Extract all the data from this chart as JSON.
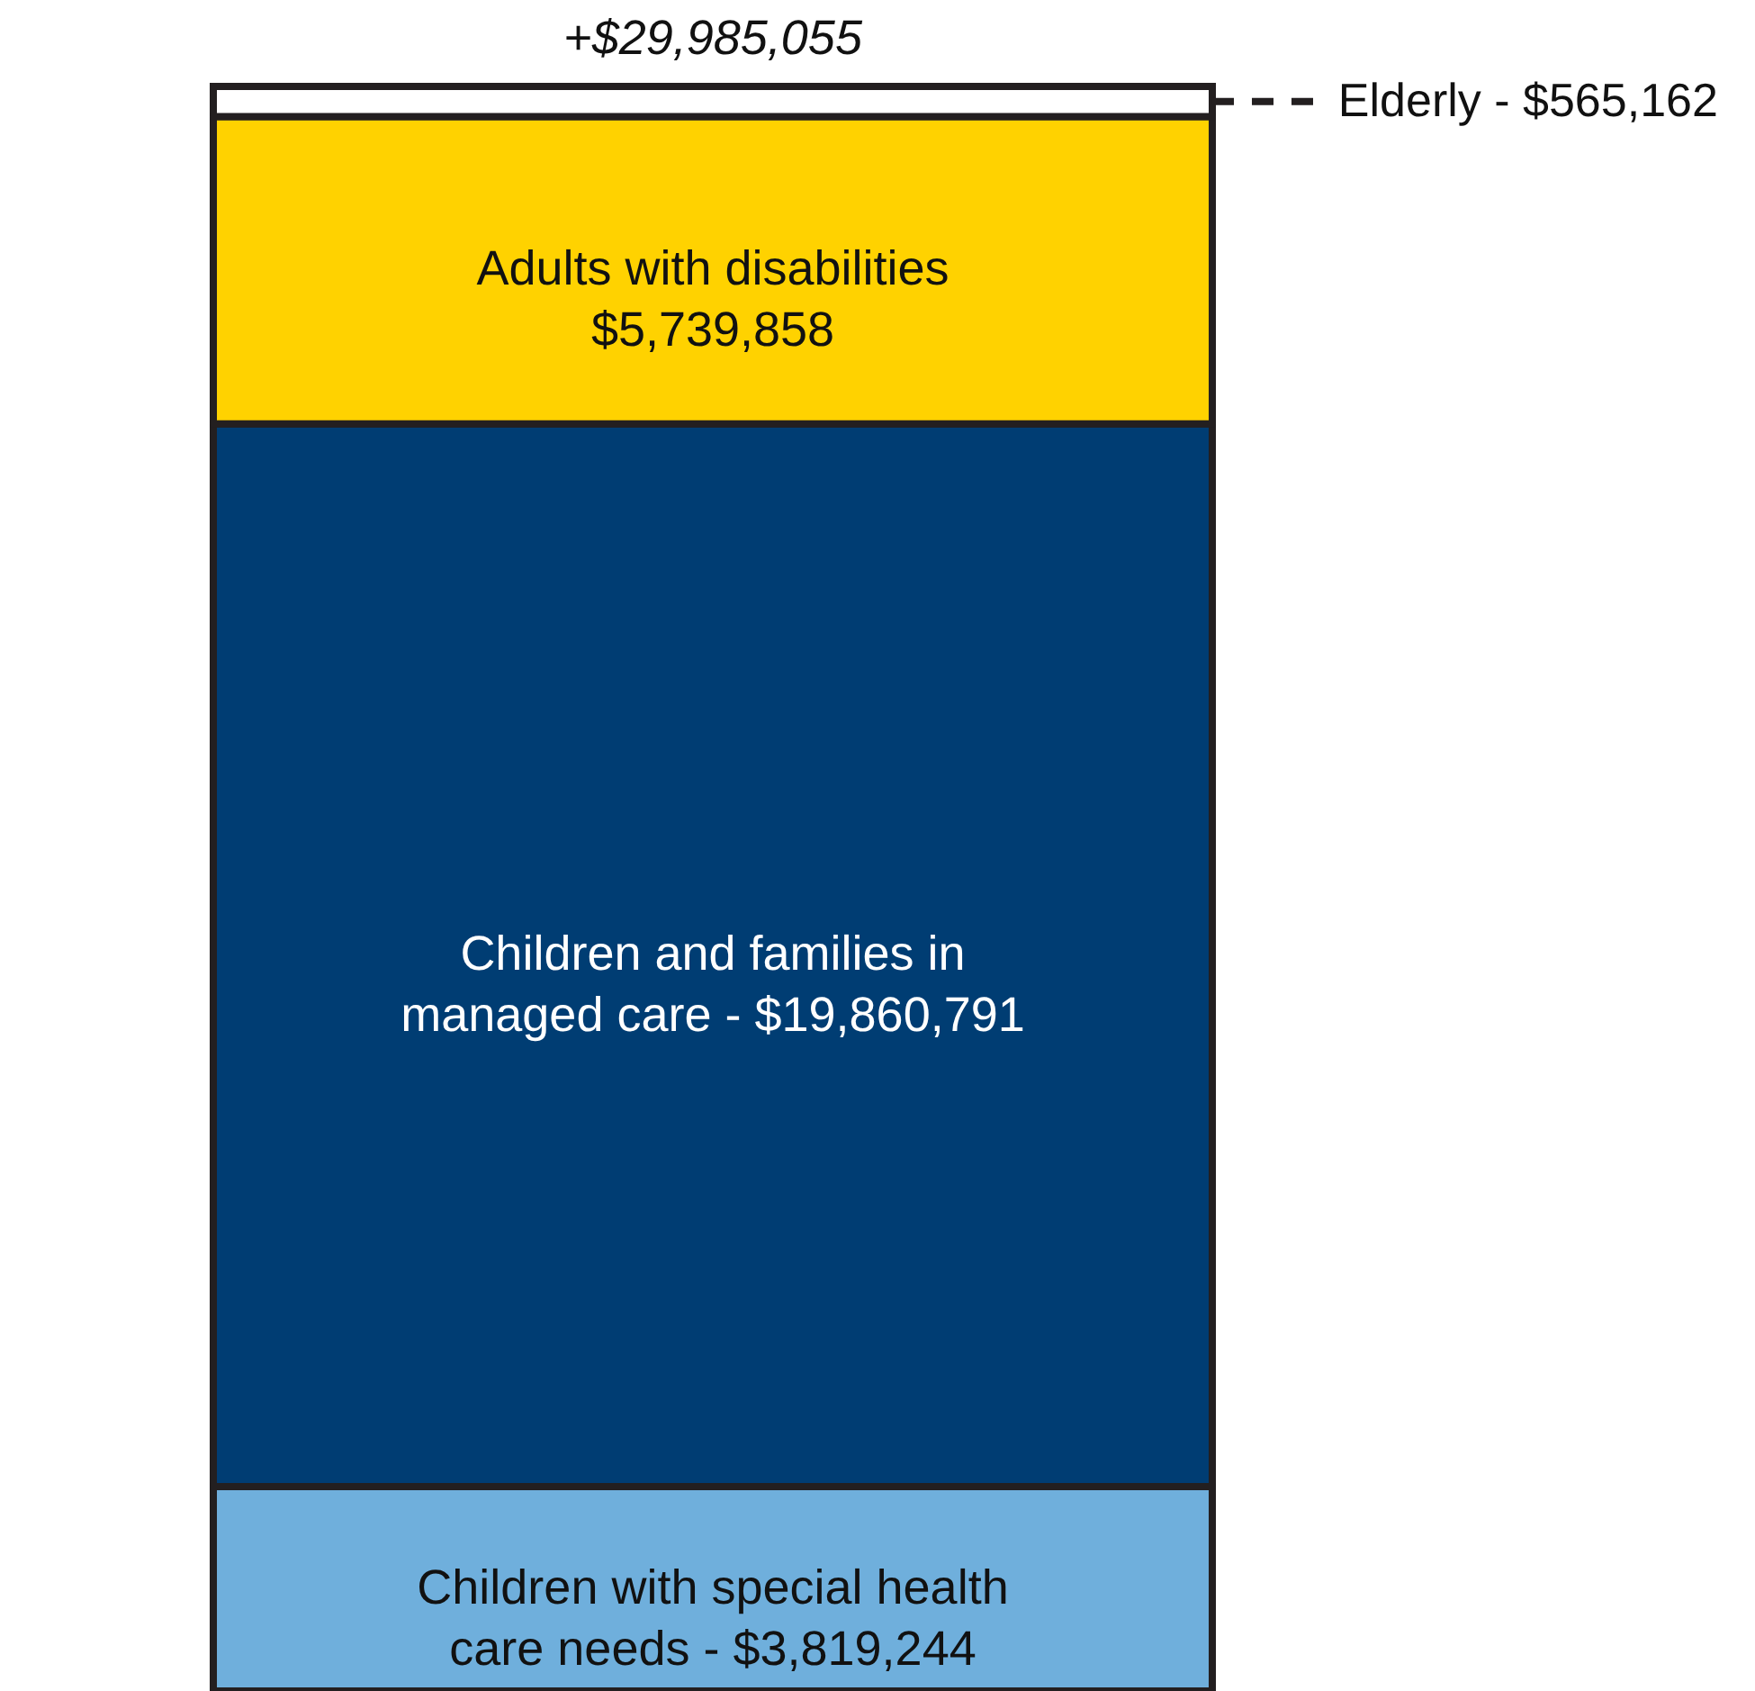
{
  "chart_data": {
    "type": "bar",
    "stacked": true,
    "categories": [
      null
    ],
    "series": [
      {
        "name": "Children with special health care needs -",
        "color": "#6fafdc",
        "values": [
          3819244
        ],
        "value_labels": [
          "$3,819,244"
        ]
      },
      {
        "name": "Children and families in managed care -",
        "color": "#003d73",
        "values": [
          19860791
        ],
        "value_labels": [
          "$19,860,791"
        ]
      },
      {
        "name": "Adults with disabilities",
        "color": "#ffd200",
        "values": [
          5739858
        ],
        "value_labels": [
          "$5,739,858"
        ]
      },
      {
        "name": "Elderly -",
        "color": "#ffffff",
        "values": [
          565162
        ],
        "value_labels": [
          "$565,162"
        ]
      }
    ],
    "totals": [
      "+$29,985,055"
    ]
  }
}
